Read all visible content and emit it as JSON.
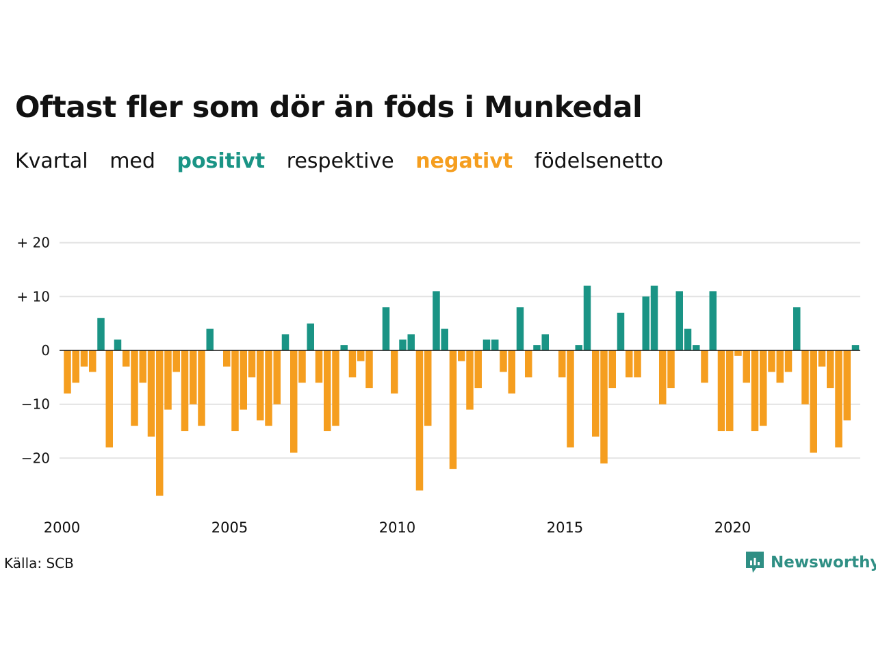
{
  "title": "Oftast fler som dör än föds i Munkedal",
  "subtitle": {
    "w1": "Kvartal",
    "w2": "med",
    "positive_word": "positivt",
    "w3": "respektive",
    "negative_word": "negativt",
    "w4": "födelsenetto"
  },
  "source": "Källa: SCB",
  "brand": "Newsworthy",
  "colors": {
    "positive": "#1a9485",
    "negative": "#f59e1f",
    "grid": "#e2e2e2",
    "brand": "#2f8f84"
  },
  "chart_data": {
    "type": "bar",
    "start_year": 2000,
    "quarters_per_year": 4,
    "values": [
      -8,
      -6,
      -3,
      -4,
      6,
      -18,
      2,
      -3,
      -14,
      -6,
      -16,
      -27,
      -11,
      -4,
      -15,
      -10,
      -14,
      4,
      0,
      -3,
      -15,
      -11,
      -5,
      -13,
      -14,
      -10,
      3,
      -19,
      -6,
      5,
      -6,
      -15,
      -14,
      1,
      -5,
      -2,
      -7,
      0,
      8,
      -8,
      2,
      3,
      -26,
      -14,
      11,
      4,
      -22,
      -2,
      -11,
      -7,
      2,
      2,
      -4,
      -8,
      8,
      -5,
      1,
      3,
      0,
      -5,
      -18,
      1,
      12,
      -16,
      -21,
      -7,
      7,
      -5,
      -5,
      10,
      12,
      -10,
      -7,
      11,
      4,
      1,
      -6,
      11,
      -15,
      -15,
      -1,
      -6,
      -15,
      -14,
      -4,
      -6,
      -4,
      8,
      -10,
      -19,
      -3,
      -7,
      -18,
      -13,
      1
    ],
    "yticks": [
      20,
      10,
      0,
      -10,
      -20
    ],
    "ytick_labels": [
      "+ 20",
      "+ 10",
      "0",
      "−10",
      "−20"
    ],
    "xticks": [
      2000,
      2005,
      2010,
      2015,
      2020
    ],
    "ylim": [
      -30,
      20
    ],
    "grid": true
  }
}
